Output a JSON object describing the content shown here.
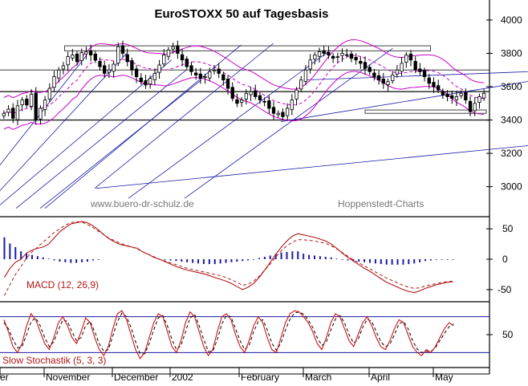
{
  "chart_data": {
    "type": "candlestick",
    "title": "EuroSTOXX 50 auf Tagesbasis",
    "watermarks": [
      "www.buero-dr-schulz.de",
      "Hoppenstedt-Charts"
    ],
    "colors": {
      "background": "#ffffff",
      "candle_up": "#ffffff",
      "candle_down": "#000000",
      "bands": "#cc00cc",
      "trendlines": "#1a1aa8",
      "macd": "#b01818",
      "histogram": "#1a1aa8",
      "stochastic": "#d01010",
      "grid": "#000000"
    },
    "x_labels": [
      "er",
      "November",
      "December",
      "2002",
      "February",
      "March",
      "April",
      "May"
    ],
    "price_panel": {
      "ylim": [
        2820,
        4120
      ],
      "yticks": [
        "4000",
        "3800",
        "3600",
        "3400",
        "3200",
        "3000"
      ],
      "horizontal_levels": [
        3570,
        3400,
        3700
      ],
      "rectangles": [
        {
          "x0": 0.13,
          "x1": 0.885,
          "y0": 3845,
          "y1": 3815
        },
        {
          "x0": 0.75,
          "x1": 1.0,
          "y0": 3460,
          "y1": 3440
        }
      ],
      "closes": [
        3440,
        3465,
        3410,
        3485,
        3520,
        3490,
        3555,
        3400,
        3470,
        3520,
        3590,
        3660,
        3700,
        3725,
        3780,
        3790,
        3750,
        3805,
        3810,
        3790,
        3760,
        3720,
        3680,
        3700,
        3735,
        3840,
        3800,
        3750,
        3700,
        3660,
        3630,
        3610,
        3650,
        3680,
        3730,
        3790,
        3820,
        3840,
        3800,
        3760,
        3720,
        3690,
        3670,
        3650,
        3660,
        3690,
        3700,
        3680,
        3640,
        3590,
        3530,
        3500,
        3520,
        3560,
        3570,
        3540,
        3520,
        3510,
        3470,
        3440,
        3440,
        3420,
        3470,
        3520,
        3580,
        3640,
        3700,
        3760,
        3790,
        3810,
        3800,
        3790,
        3770,
        3780,
        3800,
        3790,
        3770,
        3760,
        3740,
        3710,
        3690,
        3660,
        3640,
        3620,
        3630,
        3670,
        3700,
        3740,
        3790,
        3760,
        3700,
        3690,
        3660,
        3620,
        3600,
        3580,
        3550,
        3540,
        3530,
        3540,
        3560,
        3520,
        3450,
        3500,
        3540,
        3560
      ]
    },
    "macd_panel": {
      "label": "MACD (12, 26,9)",
      "ylim": [
        -70,
        70
      ],
      "yticks": [
        "50",
        "0",
        "-50"
      ],
      "macd": [
        -30,
        -15,
        -5,
        0,
        10,
        15,
        18,
        20,
        25,
        35,
        45,
        52,
        58,
        60,
        62,
        60,
        55,
        48,
        40,
        33,
        28,
        24,
        22,
        20,
        18,
        12,
        8,
        3,
        0,
        -4,
        -8,
        -12,
        -15,
        -18,
        -20,
        -22,
        -24,
        -27,
        -30,
        -33,
        -36,
        -40,
        -45,
        -50,
        -46,
        -40,
        -30,
        -18,
        -5,
        8,
        20,
        30,
        38,
        42,
        40,
        38,
        36,
        33,
        30,
        25,
        18,
        10,
        3,
        -3,
        -9,
        -15,
        -20,
        -26,
        -32,
        -38,
        -42,
        -46,
        -50,
        -53,
        -55,
        -52,
        -48,
        -45,
        -42,
        -40,
        -38,
        -37
      ],
      "signal": [
        -60,
        -42,
        -25,
        -12,
        2,
        12,
        20,
        28,
        36,
        44,
        50,
        56,
        60,
        62,
        61,
        57,
        52,
        46,
        40,
        34,
        30,
        26,
        23,
        20,
        17,
        12,
        8,
        4,
        0,
        -3,
        -6,
        -9,
        -12,
        -15,
        -17,
        -19,
        -21,
        -23,
        -25,
        -27,
        -30,
        -34,
        -38,
        -43,
        -41,
        -36,
        -28,
        -18,
        -8,
        4,
        14,
        22,
        28,
        32,
        32,
        31,
        30,
        28,
        26,
        22,
        17,
        11,
        5,
        -1,
        -6,
        -11,
        -16,
        -21,
        -26,
        -31,
        -35,
        -39,
        -43,
        -46,
        -48,
        -47,
        -44,
        -42,
        -40,
        -38,
        -37,
        -36
      ],
      "histogram": [
        36,
        26,
        20,
        13,
        10,
        7,
        5,
        3,
        1,
        -2,
        -4,
        -5,
        -6,
        -6,
        -5,
        -4,
        -2,
        -1,
        0,
        0,
        0,
        0,
        0,
        0,
        0,
        0,
        0,
        0,
        0,
        -1,
        -2,
        -3,
        -4,
        -5,
        -6,
        -7,
        -8,
        -8,
        -8,
        -7,
        -6,
        -5,
        -4,
        -3,
        -2,
        -1,
        2,
        4,
        6,
        9,
        11,
        12,
        13,
        13,
        9,
        7,
        6,
        5,
        4,
        3,
        1,
        -1,
        -2,
        -3,
        -4,
        -5,
        -6,
        -7,
        -8,
        -9,
        -9,
        -9,
        -9,
        -8,
        -7,
        -5,
        -3,
        -2,
        -1,
        -1,
        -1,
        -1
      ]
    },
    "stochastic_panel": {
      "label": "Slow Stochastik (5, 3, 3)",
      "ylim": [
        -5,
        105
      ],
      "yticks": [
        "50"
      ],
      "reference_lines": [
        80,
        20
      ],
      "k": [
        75,
        55,
        30,
        20,
        35,
        65,
        85,
        75,
        55,
        35,
        25,
        45,
        70,
        80,
        65,
        45,
        35,
        55,
        78,
        70,
        45,
        25,
        15,
        30,
        60,
        85,
        90,
        75,
        50,
        25,
        10,
        20,
        45,
        70,
        85,
        80,
        55,
        30,
        20,
        40,
        70,
        88,
        80,
        55,
        30,
        15,
        25,
        55,
        80,
        85,
        75,
        50,
        30,
        20,
        40,
        65,
        80,
        70,
        45,
        25,
        20,
        45,
        70,
        85,
        90,
        88,
        80,
        70,
        55,
        35,
        25,
        45,
        70,
        85,
        80,
        60,
        40,
        30,
        50,
        70,
        80,
        65,
        45,
        30,
        25,
        40,
        60,
        75,
        70,
        50,
        30,
        20,
        15,
        25,
        20,
        30,
        45,
        60,
        70,
        65
      ],
      "d": [
        70,
        60,
        42,
        28,
        30,
        50,
        72,
        78,
        65,
        45,
        30,
        38,
        58,
        75,
        72,
        55,
        40,
        45,
        65,
        72,
        55,
        35,
        22,
        25,
        48,
        72,
        86,
        80,
        62,
        38,
        18,
        18,
        35,
        58,
        78,
        82,
        65,
        42,
        25,
        32,
        55,
        78,
        84,
        65,
        42,
        22,
        22,
        42,
        68,
        82,
        80,
        60,
        40,
        25,
        32,
        55,
        72,
        75,
        58,
        36,
        24,
        36,
        58,
        76,
        86,
        88,
        84,
        75,
        62,
        45,
        32,
        38,
        58,
        76,
        82,
        70,
        50,
        36,
        42,
        62,
        76,
        72,
        55,
        38,
        30,
        34,
        50,
        68,
        72,
        60,
        40,
        26,
        20,
        22,
        22,
        28,
        40,
        52,
        63,
        68
      ]
    }
  }
}
